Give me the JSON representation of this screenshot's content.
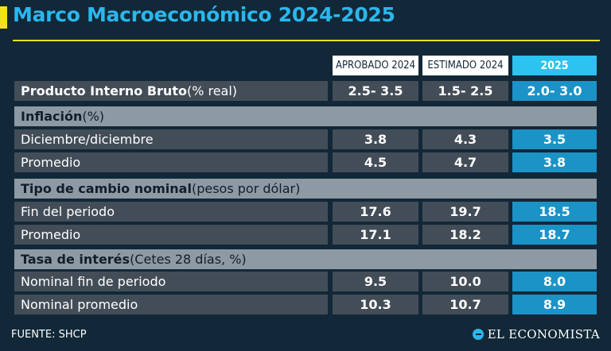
{
  "title": "Marco Macroeconómico 2024-2025",
  "columns": [
    "APROBADO 2024",
    "ESTIMADO 2024",
    "2025"
  ],
  "rows": {
    "pib": {
      "label": "Producto Interno Bruto",
      "sub": " (% real)",
      "values": [
        "2.5- 3.5",
        "1.5- 2.5",
        "2.0- 3.0"
      ]
    },
    "inflacion": {
      "label": "Inflación",
      "sub": " (%)"
    },
    "inf_dic": {
      "label": "Diciembre/diciembre",
      "values": [
        "3.8",
        "4.3",
        "3.5"
      ]
    },
    "inf_prom": {
      "label": "Promedio",
      "values": [
        "4.5",
        "4.7",
        "3.8"
      ]
    },
    "tipo_cambio": {
      "label": "Tipo de cambio nominal",
      "sub": " (pesos por dólar)"
    },
    "tc_fin": {
      "label": "Fin del periodo",
      "values": [
        "17.6",
        "19.7",
        "18.5"
      ]
    },
    "tc_prom": {
      "label": "Promedio",
      "values": [
        "17.1",
        "18.2",
        "18.7"
      ]
    },
    "tasa": {
      "label": "Tasa de interés",
      "sub": " (Cetes 28 días, %)"
    },
    "tasa_fin": {
      "label": "Nominal fin de periodo",
      "values": [
        "9.5",
        "10.0",
        "8.0"
      ]
    },
    "tasa_prom": {
      "label": "Nominal promedio",
      "values": [
        "10.3",
        "10.7",
        "8.9"
      ]
    }
  },
  "footer": {
    "source": "FUENTE: SHCP",
    "brand": "EL ECONOMISTA"
  },
  "colors": {
    "background": "#122838",
    "title": "#2ab7ec",
    "accent": "#f3e21a",
    "highlight": "#1c93c6"
  }
}
